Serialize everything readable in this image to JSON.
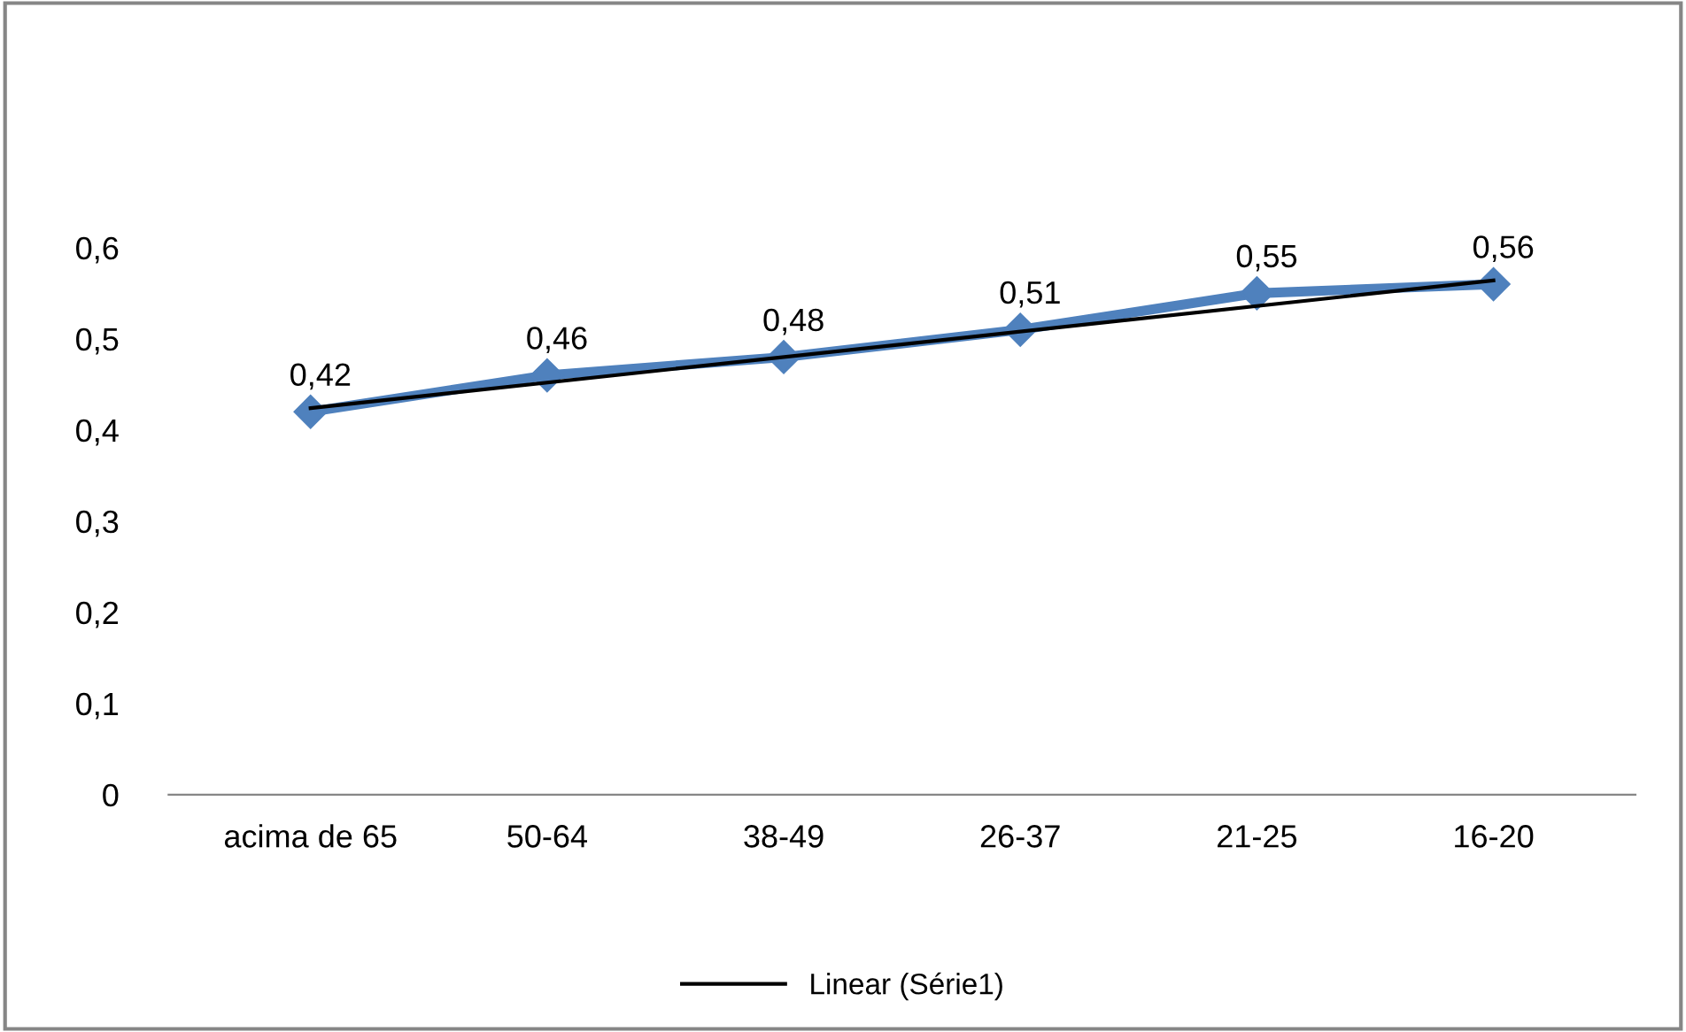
{
  "chart_data": {
    "type": "line",
    "categories": [
      "acima de 65",
      "50-64",
      "38-49",
      "26-37",
      "21-25",
      "16-20"
    ],
    "series": [
      {
        "color": "#4f81bd",
        "values": [
          0.42,
          0.46,
          0.48,
          0.51,
          0.55,
          0.56
        ],
        "marker": "diamond",
        "value_labels": [
          "0,42",
          "0,46",
          "0,48",
          "0,51",
          "0,55",
          "0,56"
        ]
      },
      {
        "name": "Linear (Série1)",
        "color": "#000000",
        "x": [
          "acima de 65",
          "16-20"
        ],
        "values": [
          0.424,
          0.564
        ],
        "marker": "none"
      }
    ],
    "ylim": [
      0,
      0.6
    ],
    "yticks": [
      0,
      {
        "value": 0.1,
        "label": "0,1"
      },
      {
        "value": 0.2,
        "label": "0,2"
      },
      {
        "value": 0.3,
        "label": "0,3"
      },
      {
        "value": 0.4,
        "label": "0,4"
      },
      {
        "value": 0.5,
        "label": "0,5"
      },
      {
        "value": 0.6,
        "label": "0,6"
      }
    ],
    "grid": false,
    "legend": "bottom"
  }
}
